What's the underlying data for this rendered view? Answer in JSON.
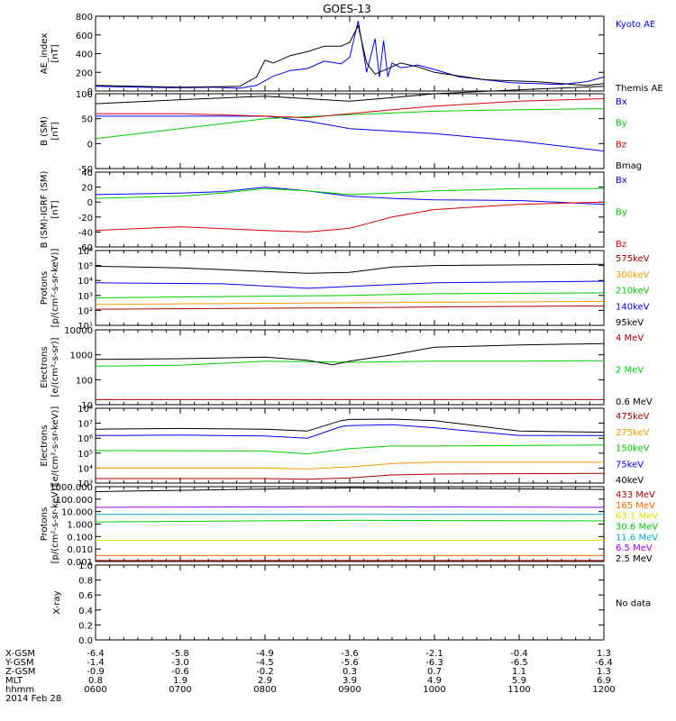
{
  "title": "GOES-13",
  "colors": {
    "black": "#000000",
    "blue": "#0000ff",
    "green": "#00cc00",
    "red": "#dd0000",
    "orange": "#ff9900",
    "darkred": "#aa0000",
    "cyan": "#00bbdd",
    "yellow": "#dddd00",
    "purple": "#9900ff",
    "teal": "#00aacc",
    "magenta": "#cc00cc"
  },
  "chart_data": [
    {
      "type": "line",
      "ylabel": [
        "AE_index",
        "[nT]"
      ],
      "ylim": [
        0,
        800
      ],
      "yticks": [
        "0",
        "200",
        "400",
        "600",
        "800"
      ],
      "tick_values": [
        0,
        200,
        400,
        600,
        800
      ],
      "series": [
        {
          "name": "Kyoto AE",
          "color": "#0000ff",
          "x": [
            6.0,
            6.5,
            7.0,
            7.4,
            7.7,
            7.9,
            8.1,
            8.3,
            8.5,
            8.7,
            8.9,
            9.0,
            9.1,
            9.15,
            9.2,
            9.3,
            9.35,
            9.4,
            9.45,
            9.5,
            9.6,
            9.7,
            9.8,
            10.0,
            10.3,
            10.6,
            10.9,
            11.2,
            11.5,
            11.8,
            12.0
          ],
          "y": [
            50,
            40,
            35,
            40,
            30,
            60,
            160,
            220,
            240,
            320,
            290,
            360,
            750,
            480,
            200,
            560,
            150,
            540,
            150,
            300,
            250,
            260,
            280,
            230,
            150,
            120,
            90,
            80,
            70,
            100,
            150
          ]
        },
        {
          "name": "Themis AE",
          "color": "#000000",
          "x": [
            6.0,
            6.5,
            7.0,
            7.4,
            7.7,
            7.9,
            8.0,
            8.1,
            8.3,
            8.5,
            8.7,
            8.9,
            9.0,
            9.1,
            9.15,
            9.2,
            9.3,
            9.4,
            9.6,
            9.8,
            10.0,
            10.3,
            10.6,
            10.9,
            11.2,
            11.5,
            11.8,
            12.0
          ],
          "y": [
            60,
            50,
            40,
            45,
            50,
            150,
            330,
            300,
            380,
            420,
            480,
            480,
            520,
            700,
            500,
            300,
            180,
            220,
            300,
            260,
            200,
            160,
            120,
            110,
            100,
            80,
            60,
            80
          ]
        }
      ],
      "legend": [
        {
          "label": "Kyoto AE",
          "color": "#0000ff"
        },
        {
          "label": "Themis AE",
          "color": "#000000"
        }
      ]
    },
    {
      "type": "line",
      "ylabel": [
        "B (SM)",
        "[nT]"
      ],
      "ylim": [
        -50,
        100
      ],
      "yticks": [
        "-50",
        "0",
        "50",
        "100"
      ],
      "tick_values": [
        -50,
        0,
        50,
        100
      ],
      "series": [
        {
          "name": "Bx",
          "color": "#0000ff",
          "x": [
            6.0,
            7.0,
            8.0,
            8.5,
            9.0,
            10.0,
            11.0,
            12.0
          ],
          "y": [
            55,
            55,
            55,
            45,
            30,
            20,
            5,
            -15
          ]
        },
        {
          "name": "By",
          "color": "#00cc00",
          "x": [
            6.0,
            7.0,
            8.0,
            9.0,
            10.0,
            11.0,
            12.0
          ],
          "y": [
            10,
            30,
            50,
            58,
            65,
            68,
            70
          ]
        },
        {
          "name": "Bz",
          "color": "#dd0000",
          "x": [
            6.0,
            7.0,
            8.0,
            8.5,
            9.0,
            9.5,
            10.0,
            11.0,
            12.0
          ],
          "y": [
            60,
            60,
            55,
            52,
            60,
            68,
            75,
            85,
            90
          ]
        },
        {
          "name": "Bmag",
          "color": "#000000",
          "x": [
            6.0,
            7.0,
            8.0,
            8.5,
            9.0,
            9.5,
            10.0,
            11.0,
            12.0
          ],
          "y": [
            80,
            88,
            95,
            90,
            85,
            92,
            100,
            108,
            115
          ]
        }
      ],
      "legend": [
        {
          "label": "Bx",
          "color": "#0000ff"
        },
        {
          "label": "By",
          "color": "#00cc00"
        },
        {
          "label": "Bz",
          "color": "#dd0000"
        },
        {
          "label": "Bmag",
          "color": "#000000"
        }
      ]
    },
    {
      "type": "line",
      "ylabel": [
        "B (SM)-IGRF (SM)",
        "[nT]"
      ],
      "ylim": [
        -60,
        40
      ],
      "yticks": [
        "-60",
        "-40",
        "-20",
        "0",
        "20",
        "40"
      ],
      "tick_values": [
        -60,
        -40,
        -20,
        0,
        20,
        40
      ],
      "series": [
        {
          "name": "Bx",
          "color": "#0000ff",
          "x": [
            6.0,
            7.0,
            7.5,
            8.0,
            8.5,
            9.0,
            9.5,
            10.0,
            11.0,
            12.0
          ],
          "y": [
            10,
            12,
            14,
            20,
            15,
            8,
            5,
            3,
            2,
            -3
          ]
        },
        {
          "name": "By",
          "color": "#00cc00",
          "x": [
            6.0,
            7.0,
            7.5,
            8.0,
            8.5,
            9.0,
            9.5,
            10.0,
            11.0,
            12.0
          ],
          "y": [
            5,
            8,
            12,
            18,
            15,
            10,
            12,
            15,
            18,
            18
          ]
        },
        {
          "name": "Bz",
          "color": "#dd0000",
          "x": [
            6.0,
            7.0,
            8.0,
            8.5,
            9.0,
            9.5,
            10.0,
            11.0,
            12.0
          ],
          "y": [
            -38,
            -33,
            -38,
            -40,
            -35,
            -20,
            -10,
            -3,
            0
          ]
        }
      ],
      "legend": [
        {
          "label": "Bx",
          "color": "#0000ff"
        },
        {
          "label": "By",
          "color": "#00cc00"
        },
        {
          "label": "Bz",
          "color": "#dd0000"
        }
      ]
    },
    {
      "type": "line",
      "log": true,
      "ylabel": [
        "Protons",
        "[p/(cm²-s-sr-keV)]"
      ],
      "ylim": [
        10,
        1000000
      ],
      "yticks": [
        "10¹",
        "10²",
        "10³",
        "10⁴",
        "10⁵",
        "10⁶"
      ],
      "tick_values": [
        10,
        100,
        1000,
        10000,
        100000,
        1000000
      ],
      "series": [
        {
          "name": "575keV",
          "color": "#aa0000",
          "x": [
            6.0,
            8.0,
            9.0,
            10.0,
            12.0
          ],
          "y": [
            120,
            140,
            150,
            170,
            200
          ]
        },
        {
          "name": "300keV",
          "color": "#ff9900",
          "x": [
            6.0,
            8.0,
            9.0,
            10.0,
            12.0
          ],
          "y": [
            250,
            300,
            320,
            350,
            400
          ]
        },
        {
          "name": "210keV",
          "color": "#00cc00",
          "x": [
            6.0,
            8.0,
            9.0,
            10.0,
            12.0
          ],
          "y": [
            700,
            900,
            1000,
            1300,
            1500
          ]
        },
        {
          "name": "140keV",
          "color": "#0000ff",
          "x": [
            6.0,
            7.5,
            8.5,
            9.0,
            10.0,
            12.0
          ],
          "y": [
            7000,
            6000,
            3000,
            4000,
            7000,
            9000
          ]
        },
        {
          "name": "95keV",
          "color": "#000000",
          "x": [
            6.0,
            7.0,
            8.0,
            8.5,
            9.0,
            9.5,
            10.0,
            12.0
          ],
          "y": [
            90000,
            70000,
            40000,
            30000,
            35000,
            80000,
            100000,
            120000
          ]
        }
      ],
      "legend": [
        {
          "label": "575keV",
          "color": "#aa0000"
        },
        {
          "label": "300keV",
          "color": "#ff9900"
        },
        {
          "label": "210keV",
          "color": "#00cc00"
        },
        {
          "label": "140keV",
          "color": "#0000ff"
        },
        {
          "label": "95keV",
          "color": "#000000"
        }
      ]
    },
    {
      "type": "line",
      "log": true,
      "ylabel": [
        "Electrons",
        "[e/(cm²-s-sr)]"
      ],
      "ylim": [
        10,
        10000
      ],
      "yticks": [
        "10",
        "100",
        "1000",
        "10000"
      ],
      "tick_values": [
        10,
        100,
        1000,
        10000
      ],
      "series": [
        {
          "name": "4 MeV",
          "color": "#aa0000",
          "x": [
            6.0,
            9.0,
            12.0
          ],
          "y": [
            16,
            16,
            16
          ]
        },
        {
          "name": "2 MeV",
          "color": "#00cc00",
          "x": [
            6.0,
            7.0,
            8.0,
            9.0,
            10.0,
            11.0,
            12.0
          ],
          "y": [
            350,
            380,
            550,
            500,
            550,
            550,
            580
          ]
        },
        {
          "name": "0.6 MeV",
          "color": "#000000",
          "x": [
            6.0,
            7.0,
            8.0,
            8.5,
            8.8,
            9.0,
            9.5,
            10.0,
            11.0,
            12.0
          ],
          "y": [
            650,
            700,
            800,
            600,
            400,
            550,
            1000,
            2000,
            2500,
            2800
          ]
        }
      ],
      "legend": [
        {
          "label": "4 MeV",
          "color": "#aa0000"
        },
        {
          "label": "2 MeV",
          "color": "#00cc00"
        },
        {
          "label": "0.6 MeV",
          "color": "#000000"
        }
      ]
    },
    {
      "type": "line",
      "log": true,
      "ylabel": [
        "Electrons",
        "[e/(cm²-s-sr-keV)]"
      ],
      "ylim": [
        1000,
        100000000
      ],
      "yticks": [
        "10³",
        "10⁴",
        "10⁵",
        "10⁶",
        "10⁷",
        "10⁸"
      ],
      "tick_values": [
        1000,
        10000,
        100000,
        1000000,
        10000000,
        100000000
      ],
      "series": [
        {
          "name": "475keV",
          "color": "#aa0000",
          "x": [
            6.0,
            8.0,
            8.5,
            9.0,
            9.5,
            10.0,
            12.0
          ],
          "y": [
            2000,
            2000,
            1800,
            2200,
            3500,
            4000,
            4500
          ]
        },
        {
          "name": "275keV",
          "color": "#ff9900",
          "x": [
            6.0,
            8.0,
            8.5,
            9.0,
            9.5,
            10.0,
            12.0
          ],
          "y": [
            10000,
            10000,
            9000,
            12000,
            20000,
            25000,
            25000
          ]
        },
        {
          "name": "150keV",
          "color": "#00cc00",
          "x": [
            6.0,
            8.0,
            8.5,
            9.0,
            9.5,
            10.0,
            12.0
          ],
          "y": [
            150000,
            140000,
            90000,
            200000,
            300000,
            300000,
            350000
          ]
        },
        {
          "name": "75keV",
          "color": "#0000ff",
          "x": [
            6.0,
            7.0,
            8.0,
            8.5,
            8.9,
            9.0,
            9.5,
            10.0,
            11.0,
            12.0
          ],
          "y": [
            1500000,
            1600000,
            1400000,
            1000000,
            6000000,
            7000000,
            8000000,
            5000000,
            1500000,
            1500000
          ]
        },
        {
          "name": "40keV",
          "color": "#000000",
          "x": [
            6.0,
            7.0,
            8.0,
            8.5,
            8.9,
            9.0,
            9.5,
            10.0,
            11.0,
            12.0
          ],
          "y": [
            4000000,
            4500000,
            4000000,
            3000000,
            15000000,
            18000000,
            19000000,
            15000000,
            3000000,
            2500000
          ]
        }
      ],
      "legend": [
        {
          "label": "475keV",
          "color": "#aa0000"
        },
        {
          "label": "275keV",
          "color": "#ff9900"
        },
        {
          "label": "150keV",
          "color": "#00cc00"
        },
        {
          "label": "75keV",
          "color": "#0000ff"
        },
        {
          "label": "40keV",
          "color": "#000000"
        }
      ]
    },
    {
      "type": "line",
      "log": true,
      "ylabel": [
        "Protons",
        "[p/(cm²-s-sr-keV)]"
      ],
      "ylim": [
        0.001,
        1000
      ],
      "yticks": [
        "0.001",
        "0.010",
        "0.100",
        "1.000",
        "10.000",
        "100.000",
        "1000.000"
      ],
      "tick_values": [
        0.001,
        0.01,
        0.1,
        1,
        10,
        100,
        1000
      ],
      "series": [
        {
          "name": "433 MeV",
          "color": "#aa0000",
          "x": [
            6.0,
            9.0,
            12.0
          ],
          "y": [
            0.0012,
            0.0012,
            0.0012
          ]
        },
        {
          "name": "165 MeV",
          "color": "#ff6600",
          "x": [
            6.0,
            9.0,
            12.0
          ],
          "y": [
            0.003,
            0.003,
            0.003
          ]
        },
        {
          "name": "63.1 MeV",
          "color": "#dddd00",
          "x": [
            6.0,
            9.0,
            12.0
          ],
          "y": [
            0.05,
            0.05,
            0.05
          ]
        },
        {
          "name": "30.6 MeV",
          "color": "#00cc00",
          "x": [
            6.0,
            9.0,
            12.0
          ],
          "y": [
            1.5,
            2.0,
            1.8
          ]
        },
        {
          "name": "11.6 MeV",
          "color": "#00aacc",
          "x": [
            6.0,
            9.0,
            12.0
          ],
          "y": [
            6.0,
            6.0,
            6.0
          ]
        },
        {
          "name": "6.5 MeV",
          "color": "#9900ff",
          "x": [
            6.0,
            9.0,
            12.0
          ],
          "y": [
            22.0,
            25.0,
            22.0
          ]
        },
        {
          "name": "2.5 MeV",
          "color": "#000000",
          "x": [
            6.0,
            9.0,
            12.0
          ],
          "y": [
            400.0,
            800.0,
            600.0
          ]
        }
      ],
      "legend": [
        {
          "label": "433 MeV",
          "color": "#aa0000"
        },
        {
          "label": "165 MeV",
          "color": "#ff6600"
        },
        {
          "label": "63.1 MeV",
          "color": "#dddd00"
        },
        {
          "label": "30.6 MeV",
          "color": "#00cc00"
        },
        {
          "label": "11.6 MeV",
          "color": "#00aacc"
        },
        {
          "label": "6.5 MeV",
          "color": "#9900ff"
        },
        {
          "label": "2.5 MeV",
          "color": "#000000"
        }
      ]
    },
    {
      "type": "line",
      "ylabel": [
        "X-ray",
        ""
      ],
      "ylim": [
        0,
        1
      ],
      "yticks": [
        "0.0",
        "0.2",
        "0.4",
        "0.6",
        "0.8",
        "1.0"
      ],
      "tick_values": [
        0.0,
        0.2,
        0.4,
        0.6,
        0.8,
        1.0
      ],
      "series": [],
      "legend": [
        {
          "label": "No data",
          "color": "#000000"
        }
      ]
    }
  ],
  "xaxis": {
    "range": [
      6.0,
      12.0
    ],
    "rows": [
      {
        "label": "X-GSM",
        "values": [
          "-6.4",
          "-5.8",
          "-4.9",
          "-3.6",
          "-2.1",
          "-0.4",
          "1.3"
        ]
      },
      {
        "label": "Y-GSM",
        "values": [
          "-1.4",
          "-3.0",
          "-4.5",
          "-5.6",
          "-6.3",
          "-6.5",
          "-6.4"
        ]
      },
      {
        "label": "Z-GSM",
        "values": [
          "-0.9",
          "-0.6",
          "-0.2",
          "0.3",
          "0.7",
          "1.1",
          "1.3"
        ]
      },
      {
        "label": "MLT",
        "values": [
          "0.8",
          "1.9",
          "2.9",
          "3.9",
          "4.9",
          "5.9",
          "6.9"
        ]
      },
      {
        "label": "hhmm",
        "values": [
          "0600",
          "0700",
          "0800",
          "0900",
          "1000",
          "1100",
          "1200"
        ]
      }
    ],
    "date": "2014 Feb 28"
  }
}
